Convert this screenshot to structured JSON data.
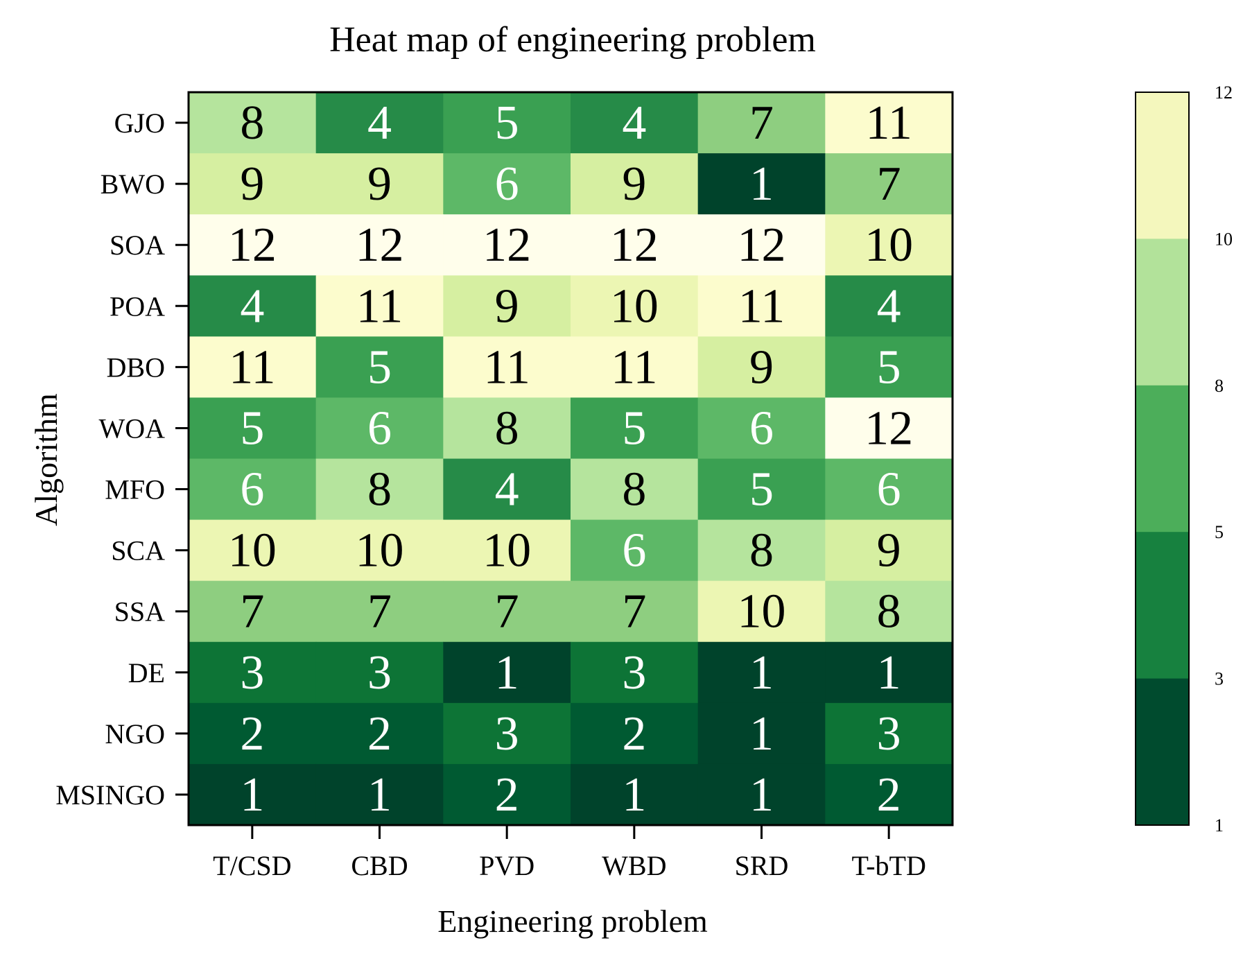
{
  "chart_data": {
    "type": "heatmap",
    "title": "Heat map of engineering problem",
    "xlabel": "Engineering problem",
    "ylabel": "Algorithm",
    "columns": [
      "T/CSD",
      "CBD",
      "PVD",
      "WBD",
      "SRD",
      "T-bTD"
    ],
    "rows": [
      "GJO",
      "BWO",
      "SOA",
      "POA",
      "DBO",
      "WOA",
      "MFO",
      "SCA",
      "SSA",
      "DE",
      "NGO",
      "MSINGO"
    ],
    "values": [
      [
        8,
        4,
        5,
        4,
        7,
        11
      ],
      [
        9,
        9,
        6,
        9,
        1,
        7
      ],
      [
        12,
        12,
        12,
        12,
        12,
        10
      ],
      [
        4,
        11,
        9,
        10,
        11,
        4
      ],
      [
        11,
        5,
        11,
        11,
        9,
        5
      ],
      [
        5,
        6,
        8,
        5,
        6,
        12
      ],
      [
        6,
        8,
        4,
        8,
        5,
        6
      ],
      [
        10,
        10,
        10,
        6,
        8,
        9
      ],
      [
        7,
        7,
        7,
        7,
        10,
        8
      ],
      [
        3,
        3,
        1,
        3,
        1,
        1
      ],
      [
        2,
        2,
        3,
        2,
        1,
        3
      ],
      [
        1,
        1,
        2,
        1,
        1,
        2
      ]
    ],
    "value_colors": {
      "1": "#00432b",
      "2": "#005a32",
      "3": "#0d7436",
      "4": "#268b48",
      "5": "#3aa052",
      "6": "#5db867",
      "7": "#8ece80",
      "8": "#b5e49d",
      "9": "#d6efa1",
      "10": "#ecf6b3",
      "11": "#fcfccd",
      "12": "#fffeeb"
    },
    "dark_text_threshold": 6,
    "colorbar": {
      "ticks": [
        "12",
        "10",
        "8",
        "5",
        "3",
        "1"
      ],
      "bands": [
        "#f4f7bd",
        "#b2e29a",
        "#4cae5a",
        "#17813f",
        "#004b2e"
      ]
    }
  }
}
